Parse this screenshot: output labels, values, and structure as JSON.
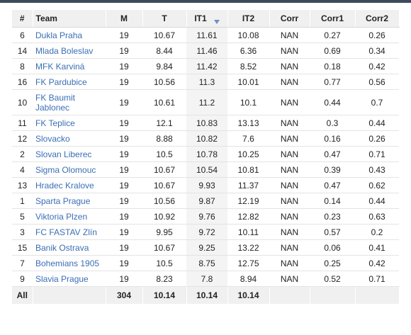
{
  "columns": [
    "#",
    "Team",
    "M",
    "T",
    "IT1",
    "IT2",
    "Corr",
    "Corr1",
    "Corr2"
  ],
  "sorted_column": "IT1",
  "rows": [
    {
      "rank": "6",
      "team": "Dukla Praha",
      "m": "19",
      "t": "10.67",
      "it1": "11.61",
      "it2": "10.08",
      "corr": "NAN",
      "corr1": "0.27",
      "corr2": "0.26"
    },
    {
      "rank": "14",
      "team": "Mlada Boleslav",
      "m": "19",
      "t": "8.44",
      "it1": "11.46",
      "it2": "6.36",
      "corr": "NAN",
      "corr1": "0.69",
      "corr2": "0.34"
    },
    {
      "rank": "8",
      "team": "MFK Karviná",
      "m": "19",
      "t": "9.84",
      "it1": "11.42",
      "it2": "8.52",
      "corr": "NAN",
      "corr1": "0.18",
      "corr2": "0.42"
    },
    {
      "rank": "16",
      "team": "FK Pardubice",
      "m": "19",
      "t": "10.56",
      "it1": "11.3",
      "it2": "10.01",
      "corr": "NAN",
      "corr1": "0.77",
      "corr2": "0.56"
    },
    {
      "rank": "10",
      "team": "FK Baumit Jablonec",
      "m": "19",
      "t": "10.61",
      "it1": "11.2",
      "it2": "10.1",
      "corr": "NAN",
      "corr1": "0.44",
      "corr2": "0.7"
    },
    {
      "rank": "11",
      "team": "FK Teplice",
      "m": "19",
      "t": "12.1",
      "it1": "10.83",
      "it2": "13.13",
      "corr": "NAN",
      "corr1": "0.3",
      "corr2": "0.44"
    },
    {
      "rank": "12",
      "team": "Slovacko",
      "m": "19",
      "t": "8.88",
      "it1": "10.82",
      "it2": "7.6",
      "corr": "NAN",
      "corr1": "0.16",
      "corr2": "0.26"
    },
    {
      "rank": "2",
      "team": "Slovan Liberec",
      "m": "19",
      "t": "10.5",
      "it1": "10.78",
      "it2": "10.25",
      "corr": "NAN",
      "corr1": "0.47",
      "corr2": "0.71"
    },
    {
      "rank": "4",
      "team": "Sigma Olomouc",
      "m": "19",
      "t": "10.67",
      "it1": "10.54",
      "it2": "10.81",
      "corr": "NAN",
      "corr1": "0.39",
      "corr2": "0.43"
    },
    {
      "rank": "13",
      "team": "Hradec Kralove",
      "m": "19",
      "t": "10.67",
      "it1": "9.93",
      "it2": "11.37",
      "corr": "NAN",
      "corr1": "0.47",
      "corr2": "0.62"
    },
    {
      "rank": "1",
      "team": "Sparta Prague",
      "m": "19",
      "t": "10.56",
      "it1": "9.87",
      "it2": "12.19",
      "corr": "NAN",
      "corr1": "0.14",
      "corr2": "0.44"
    },
    {
      "rank": "5",
      "team": "Viktoria Plzen",
      "m": "19",
      "t": "10.92",
      "it1": "9.76",
      "it2": "12.82",
      "corr": "NAN",
      "corr1": "0.23",
      "corr2": "0.63"
    },
    {
      "rank": "3",
      "team": "FC FASTAV Zlín",
      "m": "19",
      "t": "9.95",
      "it1": "9.72",
      "it2": "10.11",
      "corr": "NAN",
      "corr1": "0.57",
      "corr2": "0.2"
    },
    {
      "rank": "15",
      "team": "Banik Ostrava",
      "m": "19",
      "t": "10.67",
      "it1": "9.25",
      "it2": "13.22",
      "corr": "NAN",
      "corr1": "0.06",
      "corr2": "0.41"
    },
    {
      "rank": "7",
      "team": "Bohemians 1905",
      "m": "19",
      "t": "10.5",
      "it1": "8.75",
      "it2": "12.75",
      "corr": "NAN",
      "corr1": "0.25",
      "corr2": "0.42"
    },
    {
      "rank": "9",
      "team": "Slavia Prague",
      "m": "19",
      "t": "8.23",
      "it1": "7.8",
      "it2": "8.94",
      "corr": "NAN",
      "corr1": "0.52",
      "corr2": "0.71"
    }
  ],
  "footer": {
    "label": "All",
    "m": "304",
    "t": "10.14",
    "it1": "10.14",
    "it2": "10.14"
  },
  "colors": {
    "link": "#3b6fb4",
    "header_bg": "#f0f0f0",
    "sorted_col_bg": "#f4f4f4",
    "sort_arrow": "#6f8fc7",
    "top_bar": "#3d4a5c"
  }
}
